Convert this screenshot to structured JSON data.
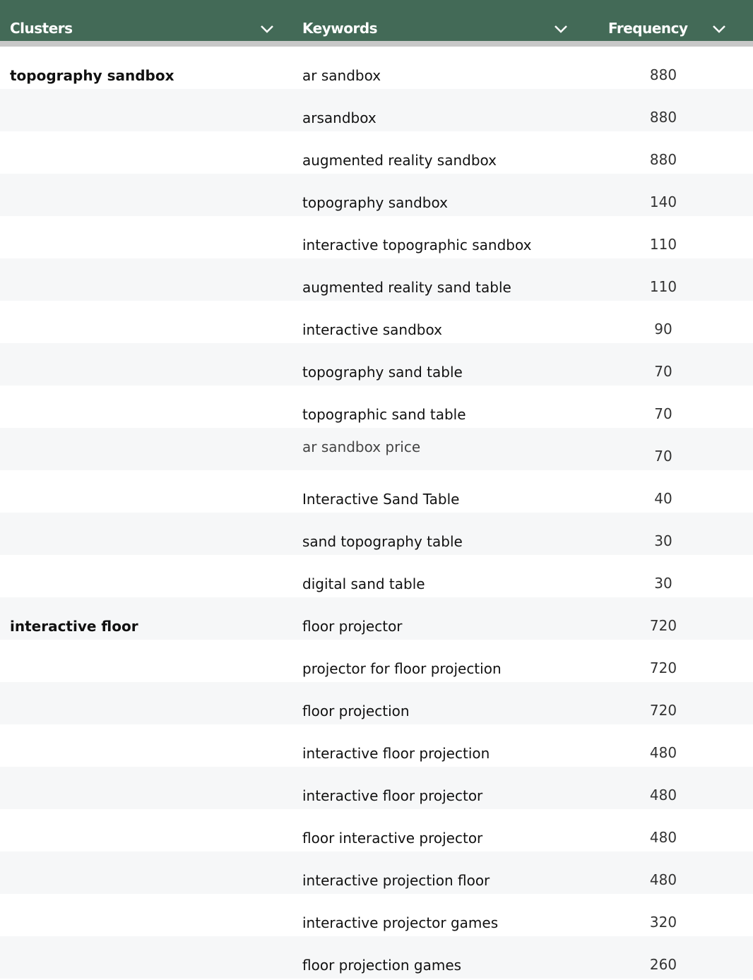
{
  "header": {
    "columns": [
      {
        "label": "Clusters",
        "icon": "chevron-down-icon"
      },
      {
        "label": "Keywords",
        "icon": "chevron-down-icon"
      },
      {
        "label": "Frequency",
        "icon": "chevron-down-icon"
      }
    ]
  },
  "colors": {
    "header_bg": "#436a57",
    "alt_row": "#f6f7f8",
    "separator": "#c8c8c8"
  },
  "rows": [
    {
      "cluster": "topography sandbox",
      "keyword": "ar sandbox",
      "frequency": "880"
    },
    {
      "cluster": "",
      "keyword": "arsandbox",
      "frequency": "880"
    },
    {
      "cluster": "",
      "keyword": "augmented reality sandbox",
      "frequency": "880"
    },
    {
      "cluster": "",
      "keyword": "topography sandbox",
      "frequency": "140"
    },
    {
      "cluster": "",
      "keyword": "interactive topographic sandbox",
      "frequency": "110"
    },
    {
      "cluster": "",
      "keyword": "augmented reality sand table",
      "frequency": "110"
    },
    {
      "cluster": "",
      "keyword": "interactive sandbox",
      "frequency": "90"
    },
    {
      "cluster": "",
      "keyword": "topography sand table",
      "frequency": "70"
    },
    {
      "cluster": "",
      "keyword": "topographic sand table",
      "frequency": "70"
    },
    {
      "cluster": "",
      "keyword": "ar sandbox price",
      "frequency": "70"
    },
    {
      "cluster": "",
      "keyword": "Interactive Sand Table",
      "frequency": "40"
    },
    {
      "cluster": "",
      "keyword": "sand topography table",
      "frequency": "30"
    },
    {
      "cluster": "",
      "keyword": "digital sand table",
      "frequency": "30"
    },
    {
      "cluster": "interactive floor",
      "keyword": "floor projector",
      "frequency": "720"
    },
    {
      "cluster": "",
      "keyword": "projector for floor projection",
      "frequency": "720"
    },
    {
      "cluster": "",
      "keyword": "floor projection",
      "frequency": "720"
    },
    {
      "cluster": "",
      "keyword": "interactive floor projection",
      "frequency": "480"
    },
    {
      "cluster": "",
      "keyword": "interactive floor projector",
      "frequency": "480"
    },
    {
      "cluster": "",
      "keyword": "floor interactive projector",
      "frequency": "480"
    },
    {
      "cluster": "",
      "keyword": "interactive projection floor",
      "frequency": "480"
    },
    {
      "cluster": "",
      "keyword": "interactive projector games",
      "frequency": "320"
    },
    {
      "cluster": "",
      "keyword": "floor projection games",
      "frequency": "260"
    }
  ]
}
